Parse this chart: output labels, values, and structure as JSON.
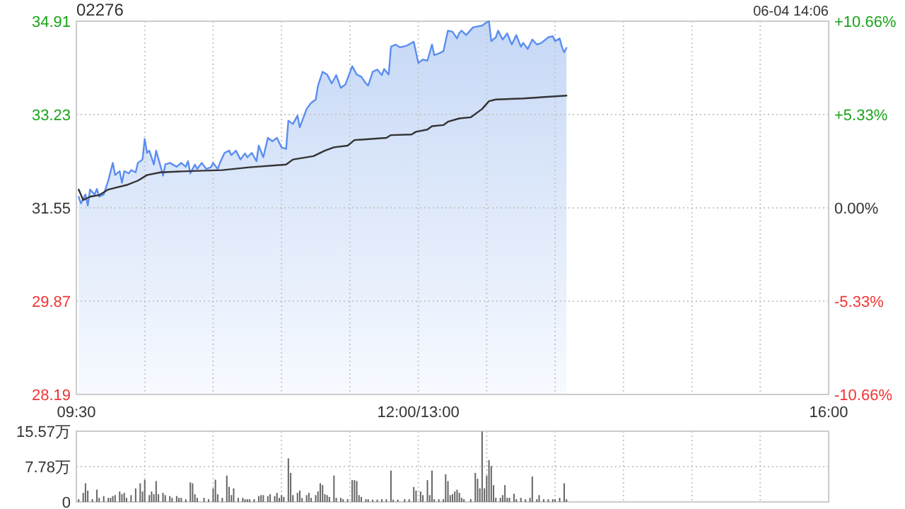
{
  "chart_data": [
    {
      "type": "line",
      "title": "02276",
      "annotations": [
        "06-04 14:06"
      ],
      "categories": [
        "09:30",
        null,
        null,
        null,
        null,
        null,
        null,
        null,
        null,
        null,
        null,
        null,
        null,
        null,
        null,
        null,
        null,
        null,
        null,
        null,
        null,
        null,
        null,
        null,
        null,
        null,
        null,
        null,
        null,
        null,
        null,
        null,
        null,
        null,
        null,
        null,
        null,
        null,
        null,
        null,
        null,
        null,
        null,
        null,
        null,
        null,
        null,
        null,
        null,
        null,
        null,
        null,
        null,
        null,
        null,
        null,
        null,
        null,
        null,
        null,
        null,
        null,
        null,
        null,
        null,
        null,
        null,
        null,
        null,
        null,
        null,
        null,
        null,
        null,
        null,
        null,
        null,
        null,
        null,
        null,
        null,
        null,
        null,
        null,
        null,
        null,
        null,
        null,
        null,
        null,
        null,
        null,
        null,
        null,
        null,
        null,
        null,
        null,
        null,
        null,
        null,
        null,
        null,
        null,
        null,
        null,
        null,
        null,
        null,
        null,
        null,
        null,
        null,
        null,
        null,
        null,
        null,
        null,
        null,
        null,
        null,
        null,
        null,
        null,
        null,
        null,
        null,
        null,
        null,
        null,
        null,
        null,
        null,
        null,
        null,
        null,
        null,
        null,
        null,
        null,
        null,
        null,
        null,
        null,
        null,
        null,
        null,
        null,
        null,
        null,
        "12:00/13:00",
        null,
        null,
        null,
        null,
        null,
        null,
        null,
        null,
        null,
        null,
        null,
        null,
        null,
        null,
        null,
        null,
        null,
        null,
        null,
        null,
        null,
        null,
        null,
        null,
        null,
        null,
        null,
        null,
        null,
        null,
        null,
        null,
        null,
        null,
        null,
        null,
        null,
        null,
        null,
        null,
        null,
        null,
        null,
        null,
        null,
        null,
        null,
        null,
        null,
        null,
        null,
        null,
        null,
        null,
        null,
        null,
        null,
        null,
        null,
        null,
        null,
        null,
        null,
        null,
        null,
        null,
        null,
        null,
        null,
        null,
        null,
        null,
        null,
        null,
        null,
        null,
        null,
        null,
        null,
        null,
        null,
        null,
        null,
        null,
        null,
        null,
        null,
        null,
        null,
        null,
        null,
        null,
        null,
        null,
        null,
        null,
        null,
        null,
        null,
        null,
        null,
        null,
        null,
        null,
        null,
        null,
        null,
        null,
        null,
        null,
        null,
        null,
        null,
        null,
        null,
        null,
        null,
        null,
        null,
        null,
        null,
        null,
        null,
        null,
        null,
        null,
        null,
        null,
        null,
        null,
        null,
        null,
        null,
        null,
        null,
        null,
        null,
        null,
        null,
        null,
        null,
        null,
        null,
        null,
        null,
        null,
        null,
        null,
        null,
        null,
        null,
        null,
        null,
        null,
        null,
        null,
        null,
        null,
        null,
        null,
        null,
        null,
        null,
        null,
        null,
        null,
        null,
        null,
        null,
        null,
        null,
        null,
        null,
        null,
        null,
        null,
        null,
        null,
        null,
        "16:00"
      ],
      "ylim": [
        28.19,
        34.91
      ],
      "yticks": [
        28.19,
        29.87,
        31.55,
        33.23,
        34.91
      ],
      "y2lim": [
        -10.66,
        10.66
      ],
      "y2ticks": [
        {
          "value": -10.66,
          "label": "-10.66%"
        },
        {
          "value": -5.33,
          "label": "-5.33%"
        },
        {
          "value": 0,
          "label": "0.00%"
        },
        {
          "value": 5.33,
          "label": "+5.33%"
        },
        {
          "value": 10.66,
          "label": "+10.66%"
        }
      ],
      "grid": true,
      "series": [
        {
          "type": "area",
          "color": "#5b8ef0",
          "values": [
            null,
            31.75,
            31.63,
            null,
            31.79,
            31.59,
            31.88,
            null,
            31.79,
            31.89,
            31.75,
            null,
            31.79,
            null,
            32.04,
            null,
            32.36,
            32.14,
            null,
            32.21,
            32.0,
            32.21,
            null,
            32.17,
            32.23,
            null,
            32.19,
            32.36,
            null,
            32.42,
            32.79,
            32.54,
            32.58,
            null,
            32.33,
            32.58,
            null,
            32.29,
            32.13,
            32.33,
            null,
            32.36,
            null,
            null,
            32.29,
            null,
            32.36,
            null,
            32.29,
            32.39,
            32.17,
            null,
            32.33,
            32.25,
            null,
            32.36,
            null,
            32.25,
            null,
            32.28,
            32.36,
            null,
            32.25,
            32.36,
            null,
            32.54,
            null,
            32.58,
            32.5,
            null,
            32.58,
            null,
            32.42,
            null,
            32.53,
            32.46,
            null,
            32.54,
            null,
            32.39,
            32.67,
            null,
            32.46,
            null,
            32.81,
            null,
            32.75,
            null,
            32.81,
            null,
            32.64,
            null,
            32.61,
            33.12,
            null,
            33.06,
            null,
            33.21,
            33.0,
            33.11,
            null,
            33.33,
            null,
            33.44,
            null,
            33.5,
            33.75,
            null,
            34.0,
            null,
            33.95,
            null,
            33.79,
            null,
            33.94,
            null,
            33.71,
            null,
            33.77,
            null,
            null,
            34.1,
            null,
            33.95,
            null,
            33.91,
            null,
            33.79,
            33.75,
            null,
            34.0,
            null,
            34.04,
            null,
            33.94,
            34.05,
            null,
            33.95,
            34.45,
            null,
            34.49,
            null,
            34.44,
            null,
            null,
            34.47,
            null,
            null,
            34.54,
            null,
            34.16,
            null,
            34.22,
            null,
            34.2,
            null,
            34.49,
            34.3,
            null,
            34.33,
            null,
            34.37,
            null,
            34.74,
            null,
            34.72,
            null,
            34.6,
            34.7,
            34.74,
            null,
            34.66,
            null,
            null,
            34.8,
            null,
            null,
            null,
            34.83,
            null,
            34.89,
            34.91,
            34.55,
            null,
            34.62,
            34.74,
            null,
            34.58,
            null,
            34.69,
            null,
            34.49,
            null,
            34.66,
            null,
            34.45,
            34.52,
            null,
            34.41,
            null,
            34.58,
            null,
            34.49,
            null,
            34.52,
            null,
            null,
            34.62,
            null,
            34.64,
            34.55,
            null,
            34.6,
            34.45,
            34.35,
            34.43,
            null,
            null,
            null,
            null,
            null,
            null,
            null,
            null,
            null,
            null,
            null,
            null,
            null,
            null,
            null,
            null,
            null,
            null,
            null,
            null,
            null,
            null,
            null,
            null,
            null,
            null,
            null,
            null,
            null,
            null,
            null,
            null,
            null,
            null,
            null,
            null,
            null,
            null,
            null,
            null,
            null,
            null,
            null,
            null,
            null,
            null,
            null,
            null,
            null,
            null,
            null,
            null,
            null,
            null,
            null,
            null,
            null,
            null,
            null,
            null,
            null,
            null,
            null,
            null,
            null,
            null,
            null,
            null,
            null,
            null,
            null,
            null,
            null,
            null,
            null,
            null,
            null,
            null,
            null,
            null,
            null,
            null,
            null,
            null,
            null,
            null,
            null,
            null,
            null,
            null,
            null,
            null,
            null,
            null,
            null,
            null,
            null,
            null,
            null,
            null,
            null,
            null,
            null,
            null,
            null,
            null,
            null,
            null,
            null,
            null,
            null,
            null,
            null,
            null,
            null
          ]
        },
        {
          "color": "#333333",
          "values": [
            null,
            31.88,
            null,
            31.69,
            null,
            null,
            31.75,
            null,
            null,
            null,
            31.78,
            null,
            null,
            null,
            31.88,
            null,
            null,
            null,
            31.92,
            null,
            null,
            null,
            31.96,
            null,
            null,
            null,
            null,
            32.04,
            null,
            null,
            null,
            32.14,
            null,
            null,
            null,
            null,
            null,
            32.19,
            null,
            null,
            null,
            null,
            null,
            null,
            null,
            null,
            null,
            null,
            null,
            32.21,
            null,
            null,
            null,
            null,
            null,
            null,
            null,
            null,
            null,
            null,
            null,
            null,
            null,
            null,
            32.23,
            null,
            null,
            null,
            null,
            null,
            null,
            null,
            null,
            null,
            null,
            null,
            32.28,
            null,
            null,
            null,
            null,
            null,
            null,
            null,
            null,
            null,
            null,
            null,
            null,
            null,
            null,
            null,
            32.33,
            null,
            null,
            32.42,
            null,
            null,
            null,
            null,
            null,
            null,
            null,
            null,
            32.48,
            null,
            null,
            null,
            null,
            32.58,
            null,
            null,
            null,
            32.64,
            null,
            null,
            null,
            null,
            null,
            32.67,
            null,
            null,
            32.77,
            null,
            null,
            null,
            null,
            null,
            null,
            null,
            null,
            null,
            null,
            null,
            null,
            null,
            32.81,
            null,
            32.86,
            null,
            null,
            null,
            null,
            null,
            null,
            null,
            null,
            32.87,
            null,
            32.92,
            null,
            null,
            null,
            null,
            32.96,
            null,
            33.02,
            null,
            null,
            null,
            null,
            33.04,
            null,
            33.1,
            null,
            null,
            null,
            null,
            33.16,
            null,
            null,
            null,
            null,
            33.18,
            null,
            null,
            null,
            null,
            33.33,
            null,
            null,
            33.47,
            null,
            null,
            33.5,
            null,
            null,
            null,
            null,
            null,
            null,
            null,
            null,
            null,
            null,
            null,
            33.52,
            null,
            null,
            null,
            null,
            null,
            null,
            null,
            null,
            null,
            null,
            null,
            null,
            null,
            null,
            null,
            null,
            null,
            null,
            33.57,
            null,
            null,
            null,
            null,
            null,
            null,
            null,
            null,
            null,
            null,
            null,
            null,
            null,
            null,
            null,
            null,
            null,
            null,
            null,
            null,
            null,
            null,
            null,
            null,
            null,
            null,
            null,
            null,
            null,
            null,
            null,
            null,
            null,
            null,
            null,
            null,
            null,
            null,
            null,
            null,
            null,
            null,
            null,
            null,
            null,
            null,
            null,
            null,
            null,
            null,
            null,
            null,
            null,
            null,
            null,
            null,
            null,
            null,
            null,
            null,
            null,
            null,
            null,
            null,
            null,
            null,
            null,
            null,
            null,
            null,
            null,
            null,
            null,
            null,
            null,
            null,
            null,
            null,
            null,
            null,
            null,
            null,
            null,
            null,
            null,
            null,
            null,
            null,
            null,
            null,
            null,
            null,
            null,
            null,
            null,
            null,
            null,
            null,
            null,
            null,
            null,
            null,
            null,
            null,
            null,
            null,
            null,
            null,
            null,
            null,
            null,
            null,
            null,
            null,
            null
          ]
        }
      ]
    },
    {
      "type": "bar",
      "color": "#666666",
      "tick_labels": "y",
      "ylim": [
        0,
        15.57
      ],
      "yticks": [
        0,
        {
          "value": 7.78,
          "label": "7.78万"
        },
        {
          "value": 15.57,
          "label": "15.57万"
        }
      ],
      "grid": true,
      "values": [
        null,
        0.6,
        null,
        2.0,
        4.1,
        2.5,
        null,
        0.6,
        null,
        2.7,
        0.9,
        null,
        1.3,
        null,
        0.9,
        0.9,
        1.3,
        1.5,
        null,
        2.3,
        1.7,
        2.0,
        0.9,
        null,
        1.5,
        null,
        3.0,
        null,
        4.1,
        2.3,
        4.9,
        null,
        1.5,
        2.3,
        1.7,
        4.6,
        1.7,
        null,
        2.0,
        1.5,
        null,
        1.3,
        0.9,
        null,
        1.3,
        0.9,
        0.9,
        null,
        0.6,
        null,
        4.3,
        4.1,
        1.7,
        0.9,
        null,
        null,
        0.9,
        null,
        0.6,
        null,
        3.0,
        4.9,
        1.7,
        null,
        0.9,
        null,
        5.8,
        3.3,
        1.5,
        3.0,
        null,
        0.9,
        null,
        0.9,
        0.6,
        0.6,
        0.6,
        null,
        0.6,
        null,
        1.3,
        1.5,
        1.5,
        null,
        1.3,
        1.7,
        null,
        1.3,
        2.0,
        0.9,
        1.5,
        1.1,
        null,
        9.6,
        6.4,
        1.5,
        null,
        2.0,
        2.5,
        0.9,
        null,
        1.5,
        2.0,
        0.9,
        null,
        1.5,
        2.3,
        4.1,
        3.7,
        1.7,
        1.5,
        1.1,
        null,
        5.8,
        0.9,
        null,
        0.9,
        0.6,
        null,
        0.6,
        null,
        4.8,
        4.8,
        4.6,
        1.5,
        1.1,
        null,
        0.6,
        0.6,
        null,
        0.5,
        null,
        0.5,
        null,
        0.6,
        null,
        0.6,
        null,
        6.9,
        0.5,
        null,
        0.5,
        null,
        null,
        0.6,
        null,
        0.6,
        null,
        3.3,
        2.5,
        null,
        2.3,
        1.5,
        null,
        4.8,
        1.5,
        6.9,
        0.6,
        null,
        0.6,
        null,
        0.6,
        6.1,
        4.6,
        1.5,
        1.7,
        2.3,
        2.7,
        2.0,
        0.9,
        0.6,
        null,
        null,
        0.6,
        null,
        6.4,
        5.1,
        3.0,
        15.5,
        3.0,
        5.8,
        9.2,
        7.9,
        3.7,
        0.9,
        null,
        0.9,
        1.5,
        3.7,
        0.9,
        0.9,
        null,
        1.8,
        0.6,
        null,
        0.9,
        null,
        0.6,
        null,
        0.9,
        5.6,
        null,
        0.6,
        1.5,
        null,
        0.6,
        null,
        0.6,
        null,
        0.6,
        0.6,
        null,
        0.9,
        null,
        4.1,
        0.6,
        null,
        null,
        null,
        null,
        null,
        null,
        null,
        null,
        null,
        null,
        null,
        null,
        null,
        null,
        null,
        null,
        null,
        null,
        null,
        null,
        null,
        null,
        null,
        null,
        null,
        null,
        null,
        null,
        null,
        null,
        null,
        null,
        null,
        null,
        null,
        null,
        null,
        null,
        null,
        null,
        null,
        null,
        null,
        null,
        null,
        null,
        null,
        null,
        null,
        null,
        null,
        null,
        null,
        null,
        null,
        null,
        null,
        null,
        null,
        null,
        null,
        null,
        null,
        null,
        null,
        null,
        null,
        null,
        null,
        null,
        null,
        null,
        null,
        null,
        null,
        null,
        null,
        null,
        null,
        null,
        null,
        null,
        null,
        null,
        null,
        null,
        null,
        null,
        null,
        null,
        null,
        null,
        null,
        null,
        null,
        null,
        null,
        null,
        null,
        null,
        null,
        null,
        null,
        null,
        null,
        null,
        null,
        null,
        null,
        null,
        null,
        null,
        null,
        null,
        null
      ]
    }
  ]
}
